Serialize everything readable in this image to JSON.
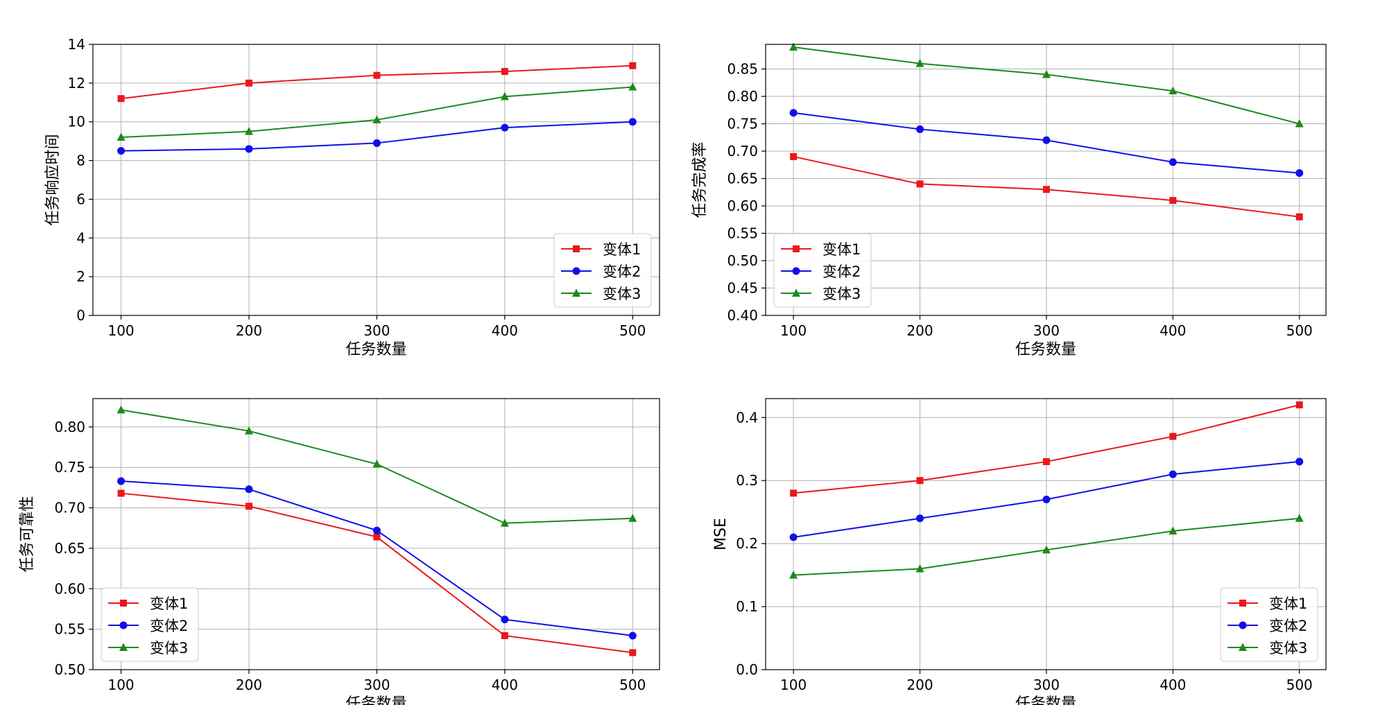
{
  "chart_data": [
    {
      "type": "line",
      "xlabel": "任务数量",
      "ylabel": "任务响应时间",
      "x": [
        100,
        200,
        300,
        400,
        500
      ],
      "xticks": [
        "100",
        "200",
        "300",
        "400",
        "500"
      ],
      "ylim": [
        0,
        14
      ],
      "yticks": [
        "0",
        "2",
        "4",
        "6",
        "8",
        "10",
        "12",
        "14"
      ],
      "grid": true,
      "legend_position": "lower-right",
      "series": [
        {
          "name": "变体1",
          "values": [
            11.2,
            12.0,
            12.4,
            12.6,
            12.9
          ],
          "color": "#e8191a",
          "marker": "square"
        },
        {
          "name": "变体2",
          "values": [
            8.5,
            8.6,
            8.9,
            9.7,
            10.0
          ],
          "color": "#0f0fe8",
          "marker": "circle"
        },
        {
          "name": "变体3",
          "values": [
            9.2,
            9.5,
            10.1,
            11.3,
            11.8
          ],
          "color": "#1b8a1b",
          "marker": "triangle"
        }
      ]
    },
    {
      "type": "line",
      "xlabel": "任务数量",
      "ylabel": "任务完成率",
      "x": [
        100,
        200,
        300,
        400,
        500
      ],
      "xticks": [
        "100",
        "200",
        "300",
        "400",
        "500"
      ],
      "ylim": [
        0.4,
        0.895
      ],
      "yticks": [
        "0.40",
        "0.45",
        "0.50",
        "0.55",
        "0.60",
        "0.65",
        "0.70",
        "0.75",
        "0.80",
        "0.85"
      ],
      "grid": true,
      "legend_position": "lower-left",
      "series": [
        {
          "name": "变体1",
          "values": [
            0.69,
            0.64,
            0.63,
            0.61,
            0.58
          ],
          "color": "#e8191a",
          "marker": "square"
        },
        {
          "name": "变体2",
          "values": [
            0.77,
            0.74,
            0.72,
            0.68,
            0.66
          ],
          "color": "#0f0fe8",
          "marker": "circle"
        },
        {
          "name": "变体3",
          "values": [
            0.89,
            0.86,
            0.84,
            0.81,
            0.75
          ],
          "color": "#1b8a1b",
          "marker": "triangle"
        }
      ]
    },
    {
      "type": "line",
      "xlabel": "任务数量",
      "ylabel": "任务可靠性",
      "x": [
        100,
        200,
        300,
        400,
        500
      ],
      "xticks": [
        "100",
        "200",
        "300",
        "400",
        "500"
      ],
      "ylim": [
        0.5,
        0.835
      ],
      "yticks": [
        "0.50",
        "0.55",
        "0.60",
        "0.65",
        "0.70",
        "0.75",
        "0.80"
      ],
      "grid": true,
      "legend_position": "lower-left",
      "series": [
        {
          "name": "变体1",
          "values": [
            0.718,
            0.702,
            0.664,
            0.542,
            0.521
          ],
          "color": "#e8191a",
          "marker": "square"
        },
        {
          "name": "变体2",
          "values": [
            0.733,
            0.723,
            0.672,
            0.562,
            0.542
          ],
          "color": "#0f0fe8",
          "marker": "circle"
        },
        {
          "name": "变体3",
          "values": [
            0.821,
            0.795,
            0.754,
            0.681,
            0.687
          ],
          "color": "#1b8a1b",
          "marker": "triangle"
        }
      ]
    },
    {
      "type": "line",
      "xlabel": "任务数量",
      "ylabel": "MSE",
      "x": [
        100,
        200,
        300,
        400,
        500
      ],
      "xticks": [
        "100",
        "200",
        "300",
        "400",
        "500"
      ],
      "ylim": [
        0.0,
        0.43
      ],
      "yticks": [
        "0.0",
        "0.1",
        "0.2",
        "0.3",
        "0.4"
      ],
      "grid": true,
      "legend_position": "lower-right",
      "series": [
        {
          "name": "变体1",
          "values": [
            0.28,
            0.3,
            0.33,
            0.37,
            0.42
          ],
          "color": "#e8191a",
          "marker": "square"
        },
        {
          "name": "变体2",
          "values": [
            0.21,
            0.24,
            0.27,
            0.31,
            0.33
          ],
          "color": "#0f0fe8",
          "marker": "circle"
        },
        {
          "name": "变体3",
          "values": [
            0.15,
            0.16,
            0.19,
            0.22,
            0.24
          ],
          "color": "#1b8a1b",
          "marker": "triangle"
        }
      ]
    }
  ]
}
